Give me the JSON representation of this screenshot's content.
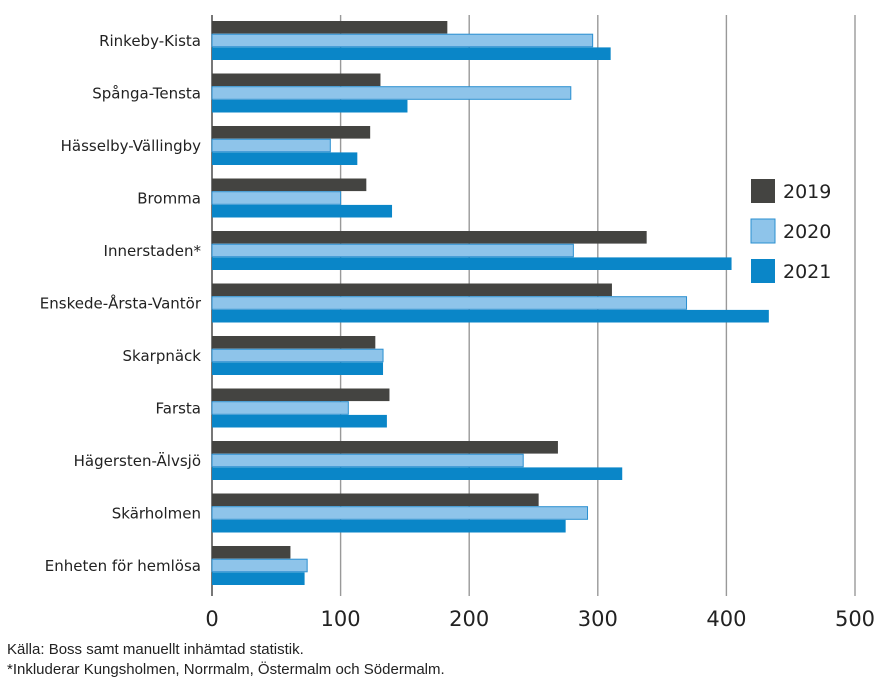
{
  "chart_data": {
    "type": "bar",
    "orientation": "horizontal",
    "categories": [
      "Rinkeby-Kista",
      "Spånga-Tensta",
      "Hässelby-Vällingby",
      "Bromma",
      "Innerstaden*",
      "Enskede-Årsta-Vantör",
      "Skarpnäck",
      "Farsta",
      "Hägersten-Älvsjö",
      "Skärholmen",
      "Enheten för hemlösa"
    ],
    "series": [
      {
        "name": "2019",
        "color": "#444441",
        "values": [
          183,
          131,
          123,
          120,
          338,
          311,
          127,
          138,
          269,
          254,
          61
        ]
      },
      {
        "name": "2020",
        "color": "#8ec4ea",
        "values": [
          296,
          279,
          92,
          100,
          281,
          369,
          133,
          106,
          242,
          292,
          74
        ]
      },
      {
        "name": "2021",
        "color": "#0a86c8",
        "values": [
          310,
          152,
          113,
          140,
          404,
          433,
          133,
          136,
          319,
          275,
          72
        ]
      }
    ],
    "xlim": [
      0,
      500
    ],
    "xticks": [
      "0",
      "100",
      "200",
      "300",
      "400",
      "500"
    ],
    "grid": "vertical",
    "legend_position": "right"
  },
  "notes": {
    "source": "Källa: Boss samt manuellt inhämtad statistik.",
    "footnote": "*Inkluderar Kungsholmen, Norrmalm, Östermalm och Södermalm."
  }
}
